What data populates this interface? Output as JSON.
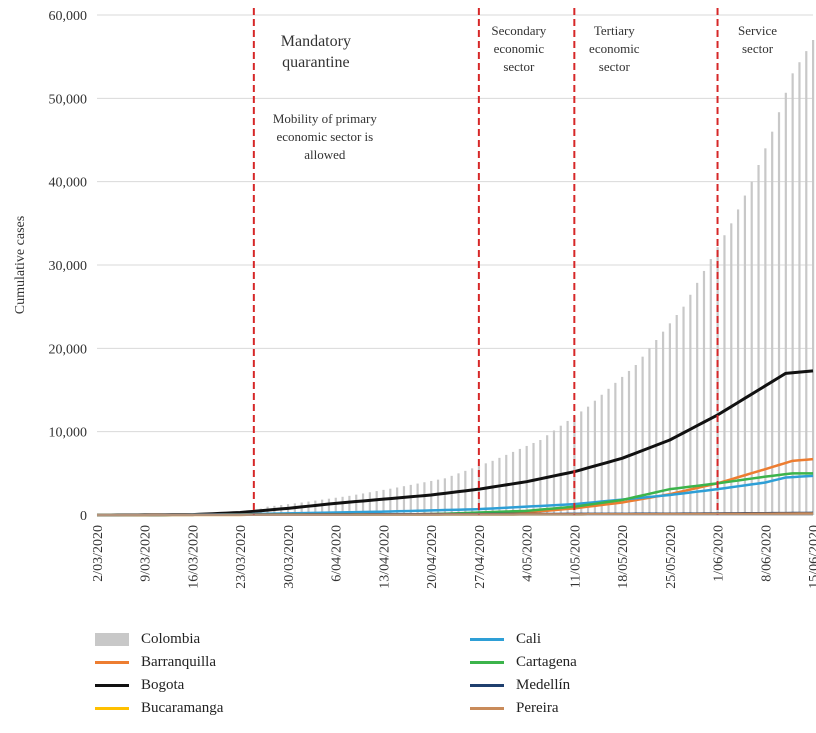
{
  "chart_data": {
    "type": "bar+line",
    "ylabel": "Cumulative cases",
    "ylim": [
      0,
      60000
    ],
    "yticks": [
      0,
      10000,
      20000,
      30000,
      40000,
      50000,
      60000
    ],
    "ytick_labels": [
      "0",
      "10,000",
      "20,000",
      "30,000",
      "40,000",
      "50,000",
      "60,000"
    ],
    "x_start": "2020-03-02",
    "x_end": "2020-06-15",
    "xtick_labels": [
      "2/03/2020",
      "9/03/2020",
      "16/03/2020",
      "23/03/2020",
      "30/03/2020",
      "6/04/2020",
      "13/04/2020",
      "20/04/2020",
      "27/04/2020",
      "4/05/2020",
      "11/05/2020",
      "18/05/2020",
      "25/05/2020",
      "1/06/2020",
      "8/06/2020",
      "15/06/2020"
    ],
    "grid": "horizontal",
    "legend_position": "bottom",
    "bar_series": {
      "name": "Colombia",
      "color": "#c8c8c8",
      "points": [
        [
          "2020-03-02",
          0
        ],
        [
          "2020-03-16",
          50
        ],
        [
          "2020-03-24",
          300
        ],
        [
          "2020-03-27",
          1000
        ],
        [
          "2020-04-01",
          1500
        ],
        [
          "2020-04-08",
          2300
        ],
        [
          "2020-04-15",
          3300
        ],
        [
          "2020-04-22",
          4400
        ],
        [
          "2020-04-29",
          6500
        ],
        [
          "2020-05-06",
          9000
        ],
        [
          "2020-05-13",
          13000
        ],
        [
          "2020-05-20",
          18000
        ],
        [
          "2020-05-27",
          25000
        ],
        [
          "2020-06-03",
          35000
        ],
        [
          "2020-06-06",
          40000
        ],
        [
          "2020-06-09",
          46000
        ],
        [
          "2020-06-12",
          53000
        ],
        [
          "2020-06-15",
          57000
        ]
      ]
    },
    "line_series": [
      {
        "name": "Barranquilla",
        "color": "#ed7d31",
        "points": [
          [
            "2020-03-02",
            0
          ],
          [
            "2020-04-20",
            100
          ],
          [
            "2020-05-04",
            300
          ],
          [
            "2020-05-11",
            800
          ],
          [
            "2020-05-18",
            1500
          ],
          [
            "2020-05-25",
            2500
          ],
          [
            "2020-06-01",
            3800
          ],
          [
            "2020-06-08",
            5500
          ],
          [
            "2020-06-12",
            6500
          ],
          [
            "2020-06-15",
            6700
          ]
        ]
      },
      {
        "name": "Bogota",
        "color": "#111111",
        "points": [
          [
            "2020-03-02",
            0
          ],
          [
            "2020-03-16",
            50
          ],
          [
            "2020-03-23",
            300
          ],
          [
            "2020-03-30",
            800
          ],
          [
            "2020-04-06",
            1400
          ],
          [
            "2020-04-13",
            1900
          ],
          [
            "2020-04-20",
            2400
          ],
          [
            "2020-04-27",
            3100
          ],
          [
            "2020-05-04",
            4000
          ],
          [
            "2020-05-11",
            5200
          ],
          [
            "2020-05-18",
            6800
          ],
          [
            "2020-05-25",
            9000
          ],
          [
            "2020-06-01",
            12000
          ],
          [
            "2020-06-08",
            15500
          ],
          [
            "2020-06-11",
            17000
          ],
          [
            "2020-06-15",
            17300
          ]
        ]
      },
      {
        "name": "Bucaramanga",
        "color": "#ffc000",
        "points": [
          [
            "2020-03-02",
            0
          ],
          [
            "2020-04-20",
            50
          ],
          [
            "2020-05-25",
            100
          ],
          [
            "2020-06-15",
            200
          ]
        ]
      },
      {
        "name": "Cali",
        "color": "#2e9fd6",
        "points": [
          [
            "2020-03-02",
            0
          ],
          [
            "2020-03-23",
            80
          ],
          [
            "2020-03-30",
            200
          ],
          [
            "2020-04-13",
            400
          ],
          [
            "2020-04-27",
            700
          ],
          [
            "2020-05-11",
            1300
          ],
          [
            "2020-05-25",
            2400
          ],
          [
            "2020-06-01",
            3100
          ],
          [
            "2020-06-08",
            3900
          ],
          [
            "2020-06-11",
            4500
          ],
          [
            "2020-06-15",
            4700
          ]
        ]
      },
      {
        "name": "Cartagena",
        "color": "#3cb44b",
        "points": [
          [
            "2020-03-02",
            0
          ],
          [
            "2020-04-20",
            100
          ],
          [
            "2020-05-04",
            500
          ],
          [
            "2020-05-11",
            1000
          ],
          [
            "2020-05-18",
            1800
          ],
          [
            "2020-05-25",
            3100
          ],
          [
            "2020-06-01",
            3800
          ],
          [
            "2020-06-08",
            4600
          ],
          [
            "2020-06-12",
            5000
          ],
          [
            "2020-06-15",
            5000
          ]
        ]
      },
      {
        "name": "Medellín",
        "color": "#1f3f6e",
        "points": [
          [
            "2020-03-02",
            0
          ],
          [
            "2020-03-23",
            50
          ],
          [
            "2020-04-20",
            100
          ],
          [
            "2020-05-25",
            150
          ],
          [
            "2020-06-15",
            250
          ]
        ]
      },
      {
        "name": "Pereira",
        "color": "#c98b5a",
        "points": [
          [
            "2020-03-02",
            0
          ],
          [
            "2020-04-20",
            50
          ],
          [
            "2020-05-25",
            100
          ],
          [
            "2020-06-15",
            180
          ]
        ]
      }
    ],
    "annotations": [
      {
        "date": "2020-03-25",
        "lines": [
          "Mandatory",
          "quarantine"
        ],
        "sub_lines": [
          "Mobility of primary",
          "economic sector is",
          "allowed"
        ]
      },
      {
        "date": "2020-04-27",
        "lines": [
          "Secondary",
          "economic",
          "sector"
        ]
      },
      {
        "date": "2020-05-11",
        "lines": [
          "Tertiary",
          "economic",
          "sector"
        ]
      },
      {
        "date": "2020-06-01",
        "lines": [
          "Service",
          "sector"
        ]
      }
    ],
    "legend": [
      {
        "name": "Colombia",
        "kind": "bar",
        "color": "#c8c8c8"
      },
      {
        "name": "Barranquilla",
        "kind": "line",
        "color": "#ed7d31"
      },
      {
        "name": "Bogota",
        "kind": "line",
        "color": "#111111"
      },
      {
        "name": "Bucaramanga",
        "kind": "line",
        "color": "#ffc000"
      },
      {
        "name": "Cali",
        "kind": "line",
        "color": "#2e9fd6"
      },
      {
        "name": "Cartagena",
        "kind": "line",
        "color": "#3cb44b"
      },
      {
        "name": "Medellín",
        "kind": "line",
        "color": "#1f3f6e"
      },
      {
        "name": "Pereira",
        "kind": "line",
        "color": "#c98b5a"
      }
    ]
  }
}
